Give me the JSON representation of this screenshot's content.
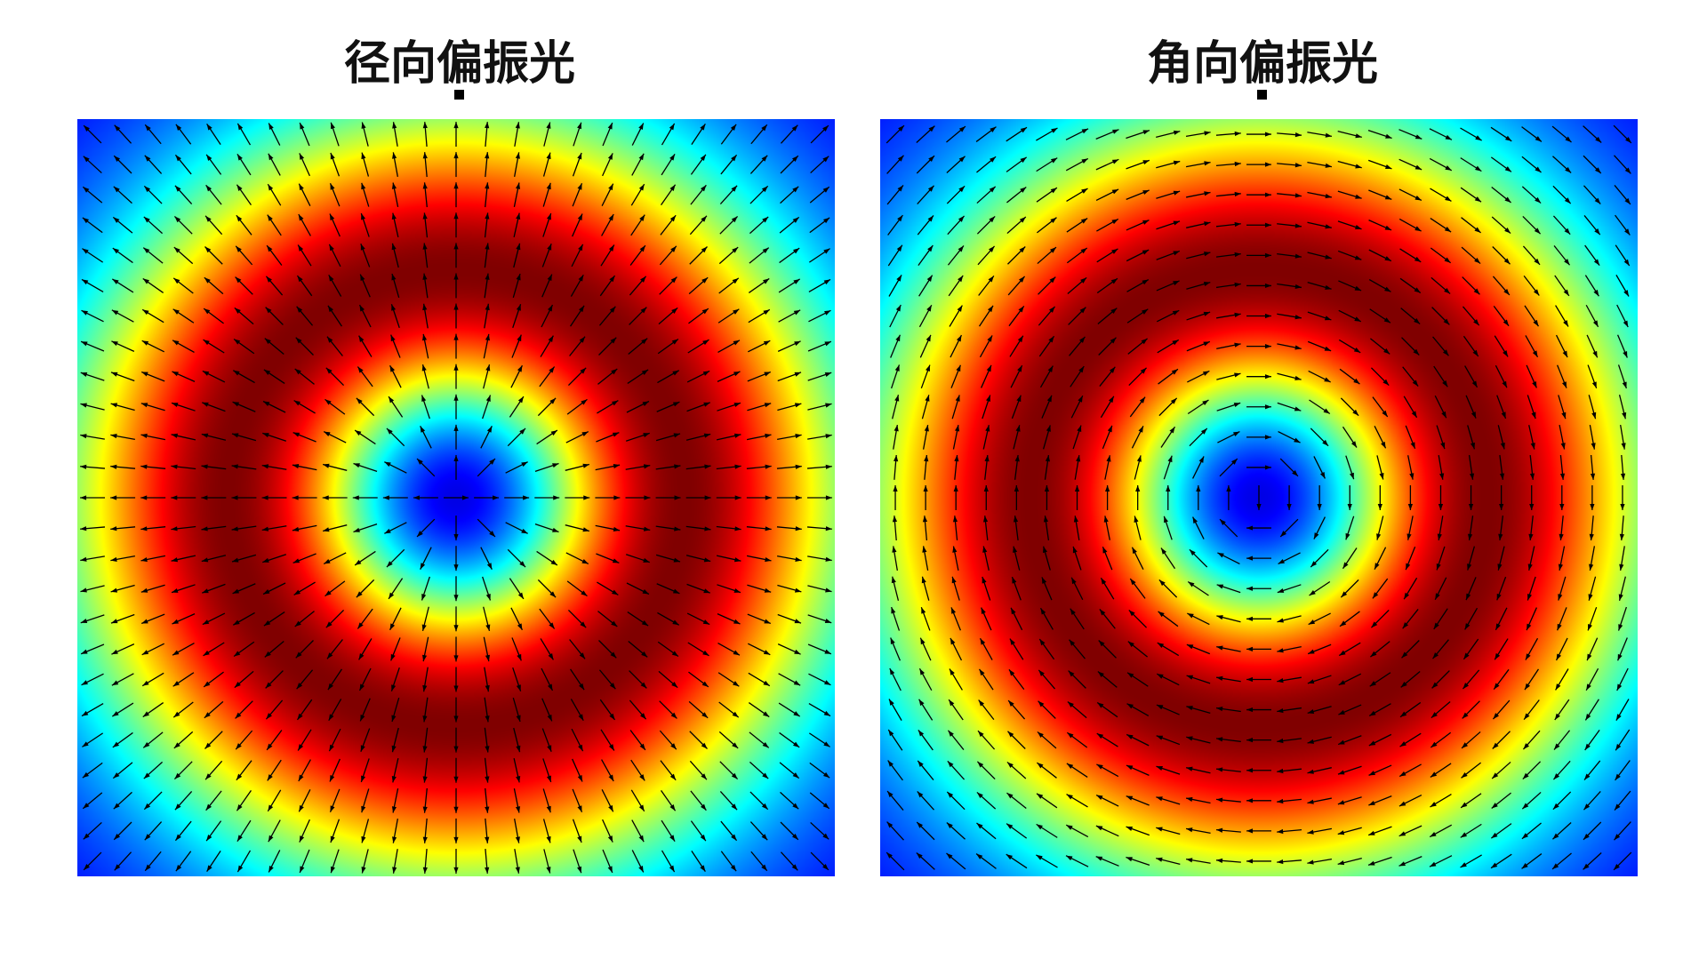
{
  "chart_data": [
    {
      "type": "heatmap",
      "title": "径向偏振光",
      "polarization": "radial",
      "colormap": "jet",
      "grid": false,
      "arrow_grid": {
        "rows": 25,
        "cols": 25
      },
      "intensity_profile": "donut",
      "colors": {
        "arrow": "#000000",
        "center": "#1e3cff",
        "ring": "#800000"
      }
    },
    {
      "type": "heatmap",
      "title": "角向偏振光",
      "polarization": "azimuthal",
      "colormap": "jet",
      "grid": false,
      "arrow_grid": {
        "rows": 25,
        "cols": 25
      },
      "intensity_profile": "donut",
      "colors": {
        "arrow": "#000000",
        "center": "#1e3cff",
        "ring": "#800000"
      }
    }
  ]
}
